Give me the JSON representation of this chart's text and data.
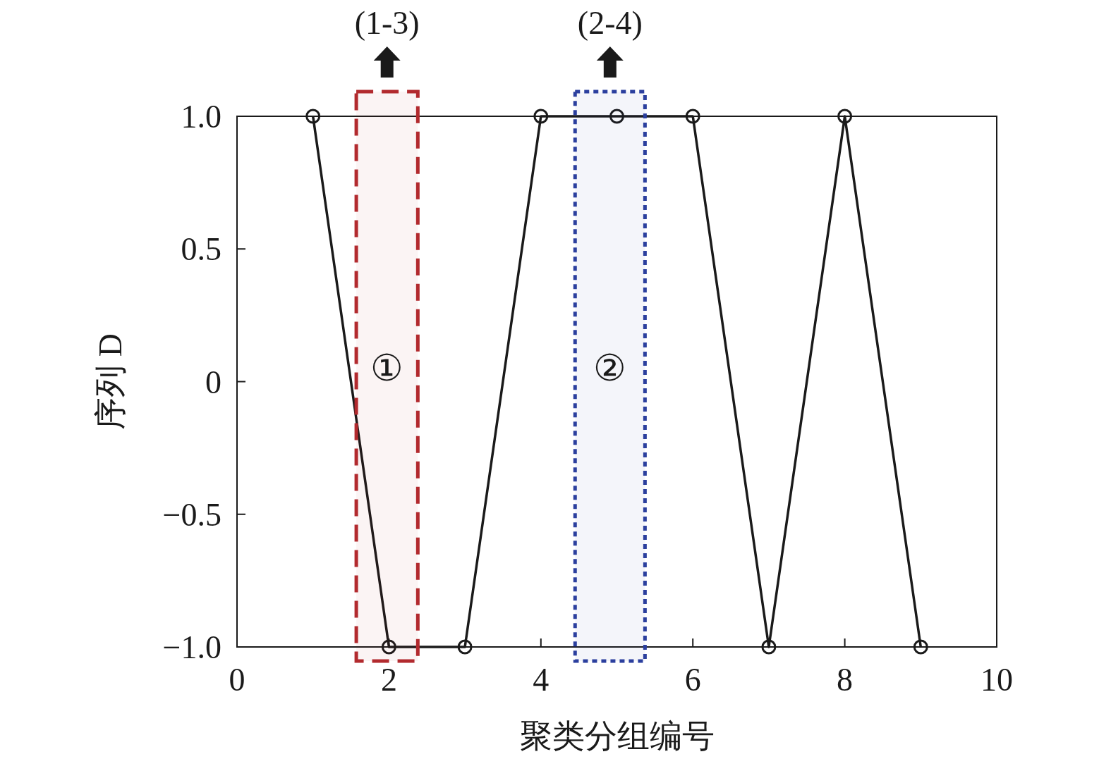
{
  "chart_data": {
    "type": "line",
    "xlabel": "聚类分组编号",
    "ylabel": "序列 D",
    "x": [
      1,
      2,
      3,
      4,
      5,
      6,
      7,
      8,
      9
    ],
    "series": [
      {
        "color": "#1a1a1a",
        "values": [
          1,
          -1,
          -1,
          1,
          1,
          1,
          -1,
          1,
          -1
        ]
      }
    ],
    "xlim": [
      0,
      10
    ],
    "xticks": [
      0,
      2,
      4,
      6,
      8,
      10
    ],
    "ylim": [
      -1,
      1
    ],
    "yticks": [
      {
        "value": -1,
        "label": "−1.0"
      },
      {
        "value": -0.5,
        "label": "−0.5"
      },
      0,
      {
        "value": 0.5,
        "label": "0.5"
      },
      {
        "value": 1,
        "label": "1.0"
      }
    ],
    "marker": "circle",
    "line_style": "solid",
    "bands": [
      {
        "axis": "x",
        "from": 1.57,
        "to": 2.38,
        "label": "①",
        "color": "#b22a2e"
      },
      {
        "axis": "x",
        "from": 4.45,
        "to": 5.37,
        "label": "②",
        "color": "#2b3f9e"
      }
    ],
    "annotations": [
      "(1-3)",
      "(2-4)"
    ]
  }
}
